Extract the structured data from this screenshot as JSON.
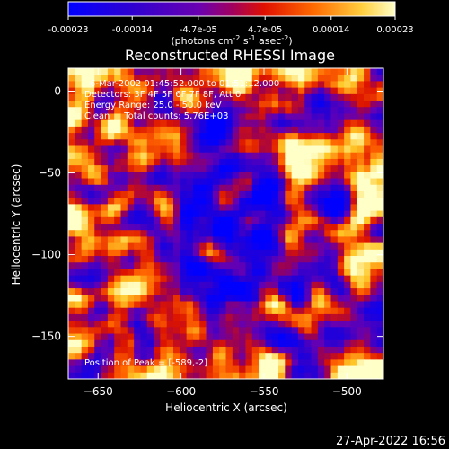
{
  "chart_data": {
    "type": "heatmap",
    "title": "Reconstructed RHESSI Image",
    "xlabel": "Heliocentric X (arcsec)",
    "ylabel": "Heliocentric Y (arcsec)",
    "xlim": [
      -668,
      -478
    ],
    "ylim": [
      -176,
      14
    ],
    "xticks": [
      -650,
      -600,
      -550,
      -500
    ],
    "yticks": [
      0,
      -50,
      -100,
      -150
    ],
    "colorbar": {
      "ticks": [
        "-0.00023",
        "-0.00014",
        "-4.7e-05",
        "4.7e-05",
        "0.00014",
        "0.00023"
      ],
      "units": "(photons cm⁻² s⁻¹ asec⁻²)",
      "range": [
        -0.00023,
        0.00023
      ],
      "colormap": [
        "#0000ff",
        "#3a00c8",
        "#7a00a0",
        "#b00010",
        "#ff3000",
        "#ff9a00",
        "#ffff90"
      ]
    },
    "info_lines": [
      "6-Mar-2002 01:45:52.000 to 01:51:12.000",
      "Detectors: 3F 4F 5F 6F 7F 8F, Att 0",
      "Energy Range: 25.0 - 50.0 keV",
      "Clean     Total counts: 5.76E+03"
    ],
    "peak_label": "Position of Peak = [-589,-2]"
  },
  "footer": {
    "timestamp": "27-Apr-2022 16:56"
  }
}
